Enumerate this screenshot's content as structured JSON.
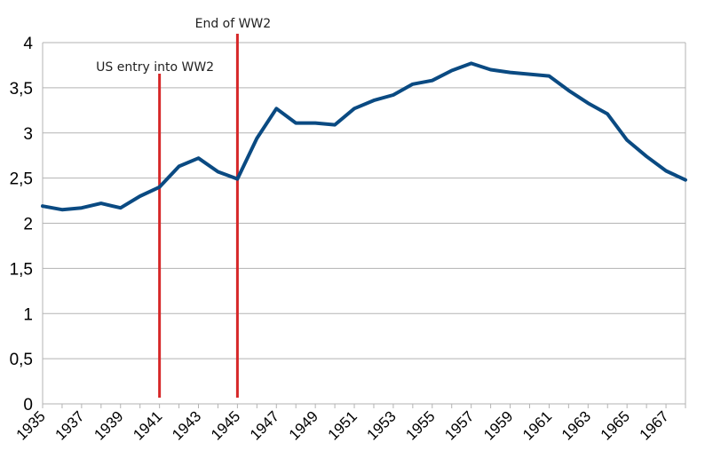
{
  "chart_data": {
    "type": "line",
    "title": "",
    "xlabel": "",
    "ylabel": "",
    "x": [
      1935,
      1936,
      1937,
      1938,
      1939,
      1940,
      1941,
      1942,
      1943,
      1944,
      1945,
      1946,
      1947,
      1948,
      1949,
      1950,
      1951,
      1952,
      1953,
      1954,
      1955,
      1956,
      1957,
      1958,
      1959,
      1960,
      1961,
      1962,
      1963,
      1964,
      1965,
      1966,
      1967,
      1968
    ],
    "x_tick_labels": [
      "1935",
      "1937",
      "1939",
      "1941",
      "1943",
      "1945",
      "1947",
      "1949",
      "1951",
      "1953",
      "1955",
      "1957",
      "1959",
      "1961",
      "1963",
      "1965",
      "1967"
    ],
    "y_tick_labels": [
      "0",
      "0,5",
      "1",
      "1,5",
      "2",
      "2,5",
      "3",
      "3,5",
      "4"
    ],
    "ylim": [
      0,
      4
    ],
    "grid": "horizontal",
    "legend": "none",
    "series": [
      {
        "color": "#0a4a82",
        "values": [
          2.19,
          2.15,
          2.17,
          2.22,
          2.17,
          2.3,
          2.4,
          2.63,
          2.72,
          2.57,
          2.49,
          2.94,
          3.27,
          3.11,
          3.11,
          3.09,
          3.27,
          3.36,
          3.42,
          3.54,
          3.58,
          3.69,
          3.77,
          3.7,
          3.67,
          3.65,
          3.63,
          3.47,
          3.33,
          3.21,
          2.92,
          2.74,
          2.58,
          2.48
        ]
      }
    ],
    "annotations": [
      {
        "text": "US entry into WW2",
        "x": 1941,
        "color": "#d62728"
      },
      {
        "text": "End of WW2",
        "x": 1945,
        "color": "#d62728"
      }
    ]
  }
}
